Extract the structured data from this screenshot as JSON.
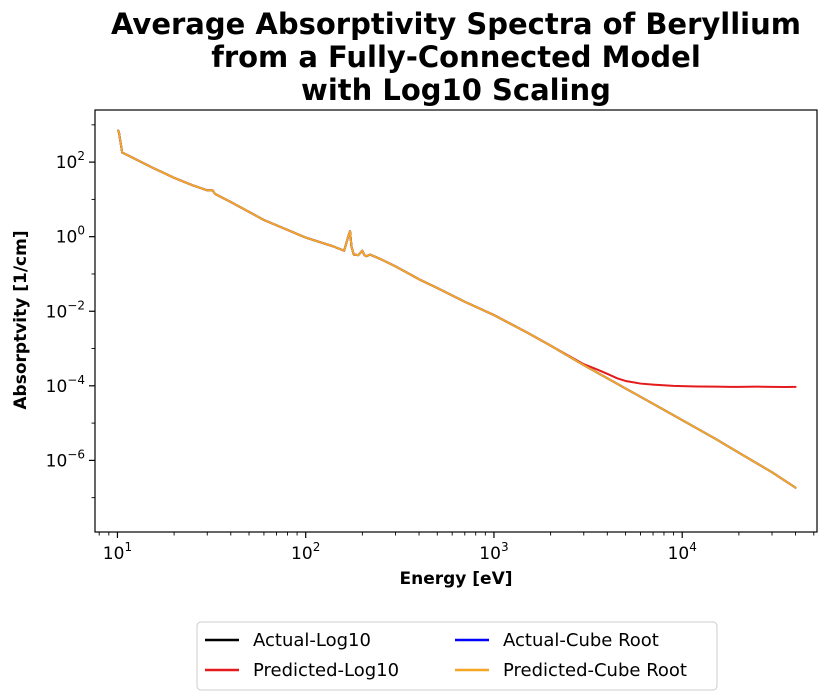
{
  "chart_data": {
    "type": "line",
    "title": [
      "Average Absorptivity Spectra of Beryllium",
      "from a Fully-Connected Model",
      "with Log10 Scaling"
    ],
    "xlabel": "Energy [eV]",
    "ylabel": "Absorptvity [1/cm]",
    "xscale": "log",
    "yscale": "log",
    "xlim": [
      7.6,
      52000
    ],
    "ylim": [
      1.2e-08,
      2500
    ],
    "xticks": [
      {
        "value": 10,
        "base": "10",
        "exp": "1"
      },
      {
        "value": 100,
        "base": "10",
        "exp": "2"
      },
      {
        "value": 1000,
        "base": "10",
        "exp": "3"
      },
      {
        "value": 10000,
        "base": "10",
        "exp": "4"
      }
    ],
    "yticks": [
      {
        "value": 100,
        "base": "10",
        "exp": "2"
      },
      {
        "value": 1,
        "base": "10",
        "exp": "0"
      },
      {
        "value": 0.01,
        "base": "10",
        "exp": "−2"
      },
      {
        "value": 0.0001,
        "base": "10",
        "exp": "−4"
      },
      {
        "value": 1e-06,
        "base": "10",
        "exp": "−6"
      }
    ],
    "grid": false,
    "legend_position": "bottom-center-below",
    "series": [
      {
        "name": "Actual-Log10",
        "color": "#000000",
        "x": [
          10.1,
          10.2,
          10.6,
          11,
          15,
          20,
          25,
          30,
          32,
          33,
          40,
          60,
          100,
          140,
          160,
          165,
          170,
          172,
          175,
          180,
          190,
          200,
          205,
          210,
          220,
          230,
          250,
          300,
          400,
          500,
          700,
          1000,
          1500,
          2000,
          3000,
          4000,
          5000,
          7000,
          10000,
          15000,
          20000,
          30000,
          40000
        ],
        "y": [
          700,
          600,
          180,
          165,
          75,
          38,
          24,
          17.5,
          17.5,
          14,
          8.5,
          2.8,
          0.95,
          0.55,
          0.42,
          0.72,
          1.2,
          1.4,
          0.55,
          0.33,
          0.32,
          0.42,
          0.32,
          0.3,
          0.33,
          0.3,
          0.25,
          0.16,
          0.072,
          0.042,
          0.018,
          0.0079,
          0.0027,
          0.0012,
          0.00036,
          0.00016,
          8.5e-05,
          3.3e-05,
          1.2e-05,
          3.8e-06,
          1.6e-06,
          4.8e-07,
          1.85e-07
        ]
      },
      {
        "name": "Predicted-Log10",
        "color": "#e41a1c",
        "x": [
          10.1,
          10.2,
          10.6,
          11,
          15,
          20,
          25,
          30,
          32,
          33,
          40,
          60,
          100,
          140,
          160,
          165,
          170,
          172,
          175,
          180,
          190,
          200,
          205,
          210,
          220,
          230,
          250,
          300,
          400,
          500,
          700,
          1000,
          1500,
          2000,
          3000,
          3500,
          4000,
          4500,
          5000,
          6000,
          7000,
          9000,
          10000,
          12000,
          15000,
          18000,
          20000,
          25000,
          30000,
          35000,
          40000
        ],
        "y": [
          700,
          600,
          180,
          165,
          75,
          38,
          24,
          17.5,
          17.5,
          14,
          8.5,
          2.8,
          0.95,
          0.55,
          0.42,
          0.72,
          1.2,
          1.4,
          0.55,
          0.33,
          0.32,
          0.42,
          0.32,
          0.3,
          0.33,
          0.3,
          0.25,
          0.16,
          0.072,
          0.042,
          0.018,
          0.0079,
          0.0027,
          0.0012,
          0.00038,
          0.00028,
          0.00021,
          0.00016,
          0.000135,
          0.000115,
          0.000108,
          0.0001,
          9.8e-05,
          9.6e-05,
          9.5e-05,
          9.4e-05,
          9.4e-05,
          9.5e-05,
          9.4e-05,
          9.3e-05,
          9.4e-05
        ]
      },
      {
        "name": "Actual-Cube Root",
        "color": "#0000ff",
        "x": [
          10.1,
          10.2,
          10.6,
          11,
          15,
          20,
          25,
          30,
          32,
          33,
          40,
          60,
          100,
          140,
          160,
          165,
          170,
          172,
          175,
          180,
          190,
          200,
          205,
          210,
          220,
          230,
          250,
          300,
          400,
          500,
          700,
          1000,
          1500,
          2000,
          3000,
          4000,
          5000,
          7000,
          10000,
          15000,
          20000,
          30000,
          40000
        ],
        "y": [
          700,
          600,
          180,
          165,
          75,
          38,
          24,
          17.5,
          17.5,
          14,
          8.5,
          2.8,
          0.95,
          0.55,
          0.42,
          0.72,
          1.2,
          1.4,
          0.55,
          0.33,
          0.32,
          0.42,
          0.32,
          0.3,
          0.33,
          0.3,
          0.25,
          0.16,
          0.072,
          0.042,
          0.018,
          0.0079,
          0.0027,
          0.0012,
          0.00036,
          0.00016,
          8.5e-05,
          3.3e-05,
          1.2e-05,
          3.8e-06,
          1.6e-06,
          4.8e-07,
          1.85e-07
        ]
      },
      {
        "name": "Predicted-Cube Root",
        "color": "#f5a623",
        "x": [
          10.1,
          10.2,
          10.6,
          11,
          15,
          20,
          25,
          30,
          32,
          33,
          40,
          60,
          100,
          140,
          160,
          165,
          170,
          172,
          175,
          180,
          190,
          200,
          205,
          210,
          220,
          230,
          250,
          300,
          400,
          500,
          700,
          1000,
          1500,
          2000,
          3000,
          4000,
          5000,
          7000,
          10000,
          15000,
          20000,
          30000,
          40000
        ],
        "y": [
          700,
          600,
          180,
          165,
          75,
          38,
          24,
          17.5,
          17.5,
          14,
          8.5,
          2.8,
          0.95,
          0.55,
          0.42,
          0.72,
          1.2,
          1.4,
          0.55,
          0.33,
          0.32,
          0.42,
          0.32,
          0.3,
          0.33,
          0.3,
          0.25,
          0.16,
          0.072,
          0.042,
          0.018,
          0.0079,
          0.0027,
          0.0012,
          0.00036,
          0.00016,
          8.5e-05,
          3.3e-05,
          1.2e-05,
          3.8e-06,
          1.6e-06,
          4.8e-07,
          1.85e-07
        ]
      }
    ],
    "legend": {
      "columns": [
        [
          "Actual-Log10",
          "Predicted-Log10"
        ],
        [
          "Actual-Cube Root",
          "Predicted-Cube Root"
        ]
      ]
    }
  }
}
